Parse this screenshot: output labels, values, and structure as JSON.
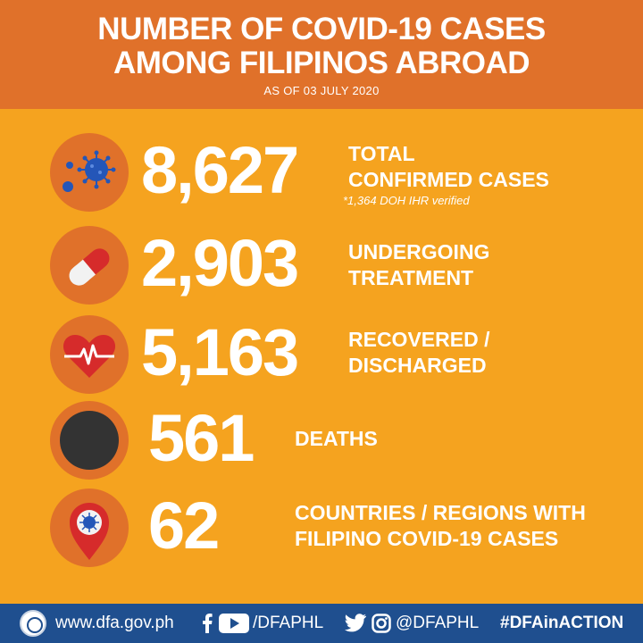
{
  "header": {
    "title_line1": "NUMBER OF COVID-19 CASES",
    "title_line2": "AMONG FILIPINOS ABROAD",
    "as_of": "AS OF 03 JULY 2020"
  },
  "stats": [
    {
      "value": "8,627",
      "label_line1": "TOTAL",
      "label_line2": "CONFIRMED CASES",
      "note": "*1,364 DOH IHR verified",
      "icon": "virus-icon"
    },
    {
      "value": "2,903",
      "label_line1": "UNDERGOING",
      "label_line2": "TREATMENT",
      "icon": "pill-capsule-icon"
    },
    {
      "value": "5,163",
      "label_line1": "RECOVERED /",
      "label_line2": "DISCHARGED",
      "icon": "heartbeat-icon"
    },
    {
      "value": "561",
      "label_line1": "DEATHS",
      "icon": "black-circle-icon"
    },
    {
      "value": "62",
      "label_line1": "COUNTRIES / REGIONS WITH",
      "label_line2": "FILIPINO COVID-19 CASES",
      "icon": "location-pin-virus-icon"
    }
  ],
  "footer": {
    "website": "www.dfa.gov.ph",
    "facebook_youtube_handle": "/DFAPHL",
    "twitter_instagram_handle": "@DFAPHL",
    "hashtag": "#DFAinACTION"
  },
  "colors": {
    "background": "#f5a31f",
    "header": "#e0712a",
    "footer": "#1f4f8f",
    "virus_blue": "#2456b8",
    "pill_red": "#d62b2b",
    "heart_red": "#d62b2b"
  }
}
